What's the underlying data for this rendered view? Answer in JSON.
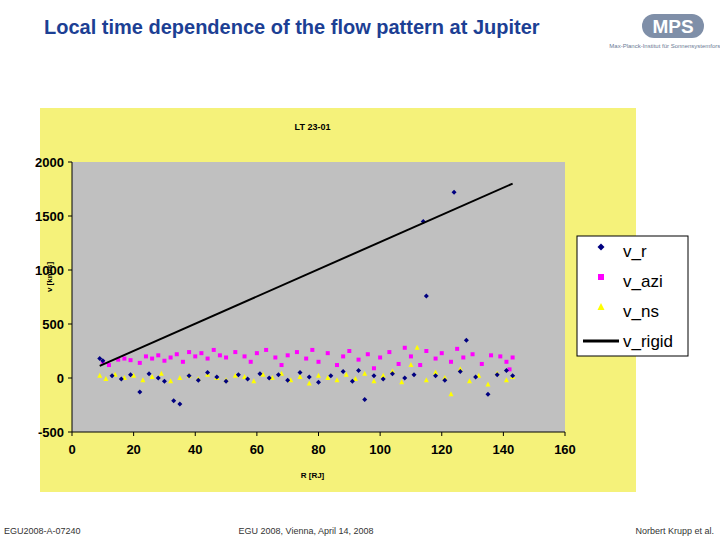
{
  "header": {
    "title": "Local time dependence of the flow pattern at Jupiter",
    "logo": {
      "title": "MPS",
      "subtitle": "Max-Planck-Institut für Sonnensystemforschung"
    }
  },
  "footer": {
    "left": "EGU2008-A-07240",
    "center": "EGU 2008, Vienna, April 14, 2008",
    "right": "Norbert Krupp et al."
  },
  "chart_data": {
    "type": "scatter",
    "title": "LT 23-01",
    "x_label": "R [RJ]",
    "y_label": "v [km/s]",
    "xlim": [
      0,
      160
    ],
    "xticks": [
      0,
      20,
      40,
      60,
      80,
      100,
      120,
      140,
      160
    ],
    "ylim": [
      -500,
      2000
    ],
    "yticks": [
      -500,
      0,
      500,
      1000,
      1500,
      2000
    ],
    "grid": false,
    "legend": "right",
    "series": [
      {
        "name": "v_r",
        "color": "#000080",
        "marker": "diamond",
        "x": [
          9,
          10,
          13,
          16,
          19,
          22,
          25,
          28,
          30,
          33,
          35,
          38,
          41,
          44,
          47,
          50,
          54,
          57,
          61,
          64,
          67,
          70,
          74,
          77,
          80,
          84,
          88,
          91,
          93,
          95,
          98,
          101,
          104,
          108,
          111,
          114,
          115,
          118,
          121,
          124,
          126,
          128,
          131,
          135,
          138,
          141,
          143
        ],
        "values": [
          180,
          160,
          20,
          -10,
          30,
          -130,
          40,
          0,
          -30,
          -210,
          -240,
          20,
          -20,
          50,
          10,
          -30,
          30,
          -10,
          40,
          0,
          30,
          -20,
          50,
          10,
          -40,
          20,
          60,
          -30,
          70,
          -200,
          20,
          -10,
          40,
          0,
          30,
          1450,
          760,
          20,
          -20,
          1720,
          60,
          350,
          10,
          -150,
          30,
          70,
          20
        ]
      },
      {
        "name": "v_azi",
        "color": "#ff00ff",
        "marker": "square",
        "x": [
          10,
          12,
          15,
          17,
          19,
          22,
          24,
          26,
          28,
          30,
          32,
          34,
          36,
          38,
          40,
          42,
          44,
          46,
          48,
          50,
          53,
          56,
          58,
          60,
          63,
          66,
          68,
          70,
          73,
          76,
          78,
          80,
          83,
          86,
          88,
          90,
          93,
          96,
          98,
          100,
          103,
          106,
          108,
          110,
          113,
          115,
          118,
          120,
          123,
          125,
          127,
          130,
          133,
          136,
          139,
          141,
          142,
          143
        ],
        "values": [
          150,
          120,
          170,
          180,
          165,
          140,
          200,
          180,
          210,
          160,
          190,
          220,
          150,
          240,
          200,
          230,
          180,
          260,
          210,
          190,
          240,
          200,
          150,
          230,
          260,
          190,
          120,
          210,
          240,
          180,
          260,
          150,
          230,
          120,
          200,
          250,
          170,
          220,
          90,
          190,
          240,
          130,
          280,
          200,
          120,
          250,
          180,
          230,
          150,
          270,
          190,
          220,
          130,
          210,
          200,
          150,
          80,
          190
        ]
      },
      {
        "name": "v_ns",
        "color": "#ffff00",
        "marker": "triangle",
        "x": [
          9,
          11,
          14,
          17,
          20,
          23,
          26,
          29,
          32,
          35,
          38,
          41,
          44,
          47,
          50,
          53,
          56,
          59,
          62,
          65,
          68,
          71,
          74,
          77,
          80,
          83,
          86,
          89,
          92,
          95,
          98,
          101,
          104,
          107,
          110,
          112,
          115,
          118,
          121,
          123,
          126,
          129,
          132,
          135,
          138,
          141,
          143
        ],
        "values": [
          20,
          -10,
          30,
          0,
          20,
          -20,
          10,
          40,
          -30,
          0,
          20,
          -10,
          30,
          0,
          -20,
          20,
          10,
          -30,
          30,
          0,
          40,
          -20,
          10,
          -50,
          20,
          0,
          -20,
          30,
          -10,
          40,
          -30,
          20,
          60,
          -40,
          120,
          280,
          -20,
          50,
          0,
          -150,
          80,
          -30,
          20,
          -60,
          40,
          -20,
          10
        ]
      },
      {
        "name": "v_rigid",
        "color": "#000000",
        "type": "line",
        "line_style": "solid",
        "x": [
          9,
          143
        ],
        "values": [
          113,
          1800
        ]
      }
    ]
  }
}
